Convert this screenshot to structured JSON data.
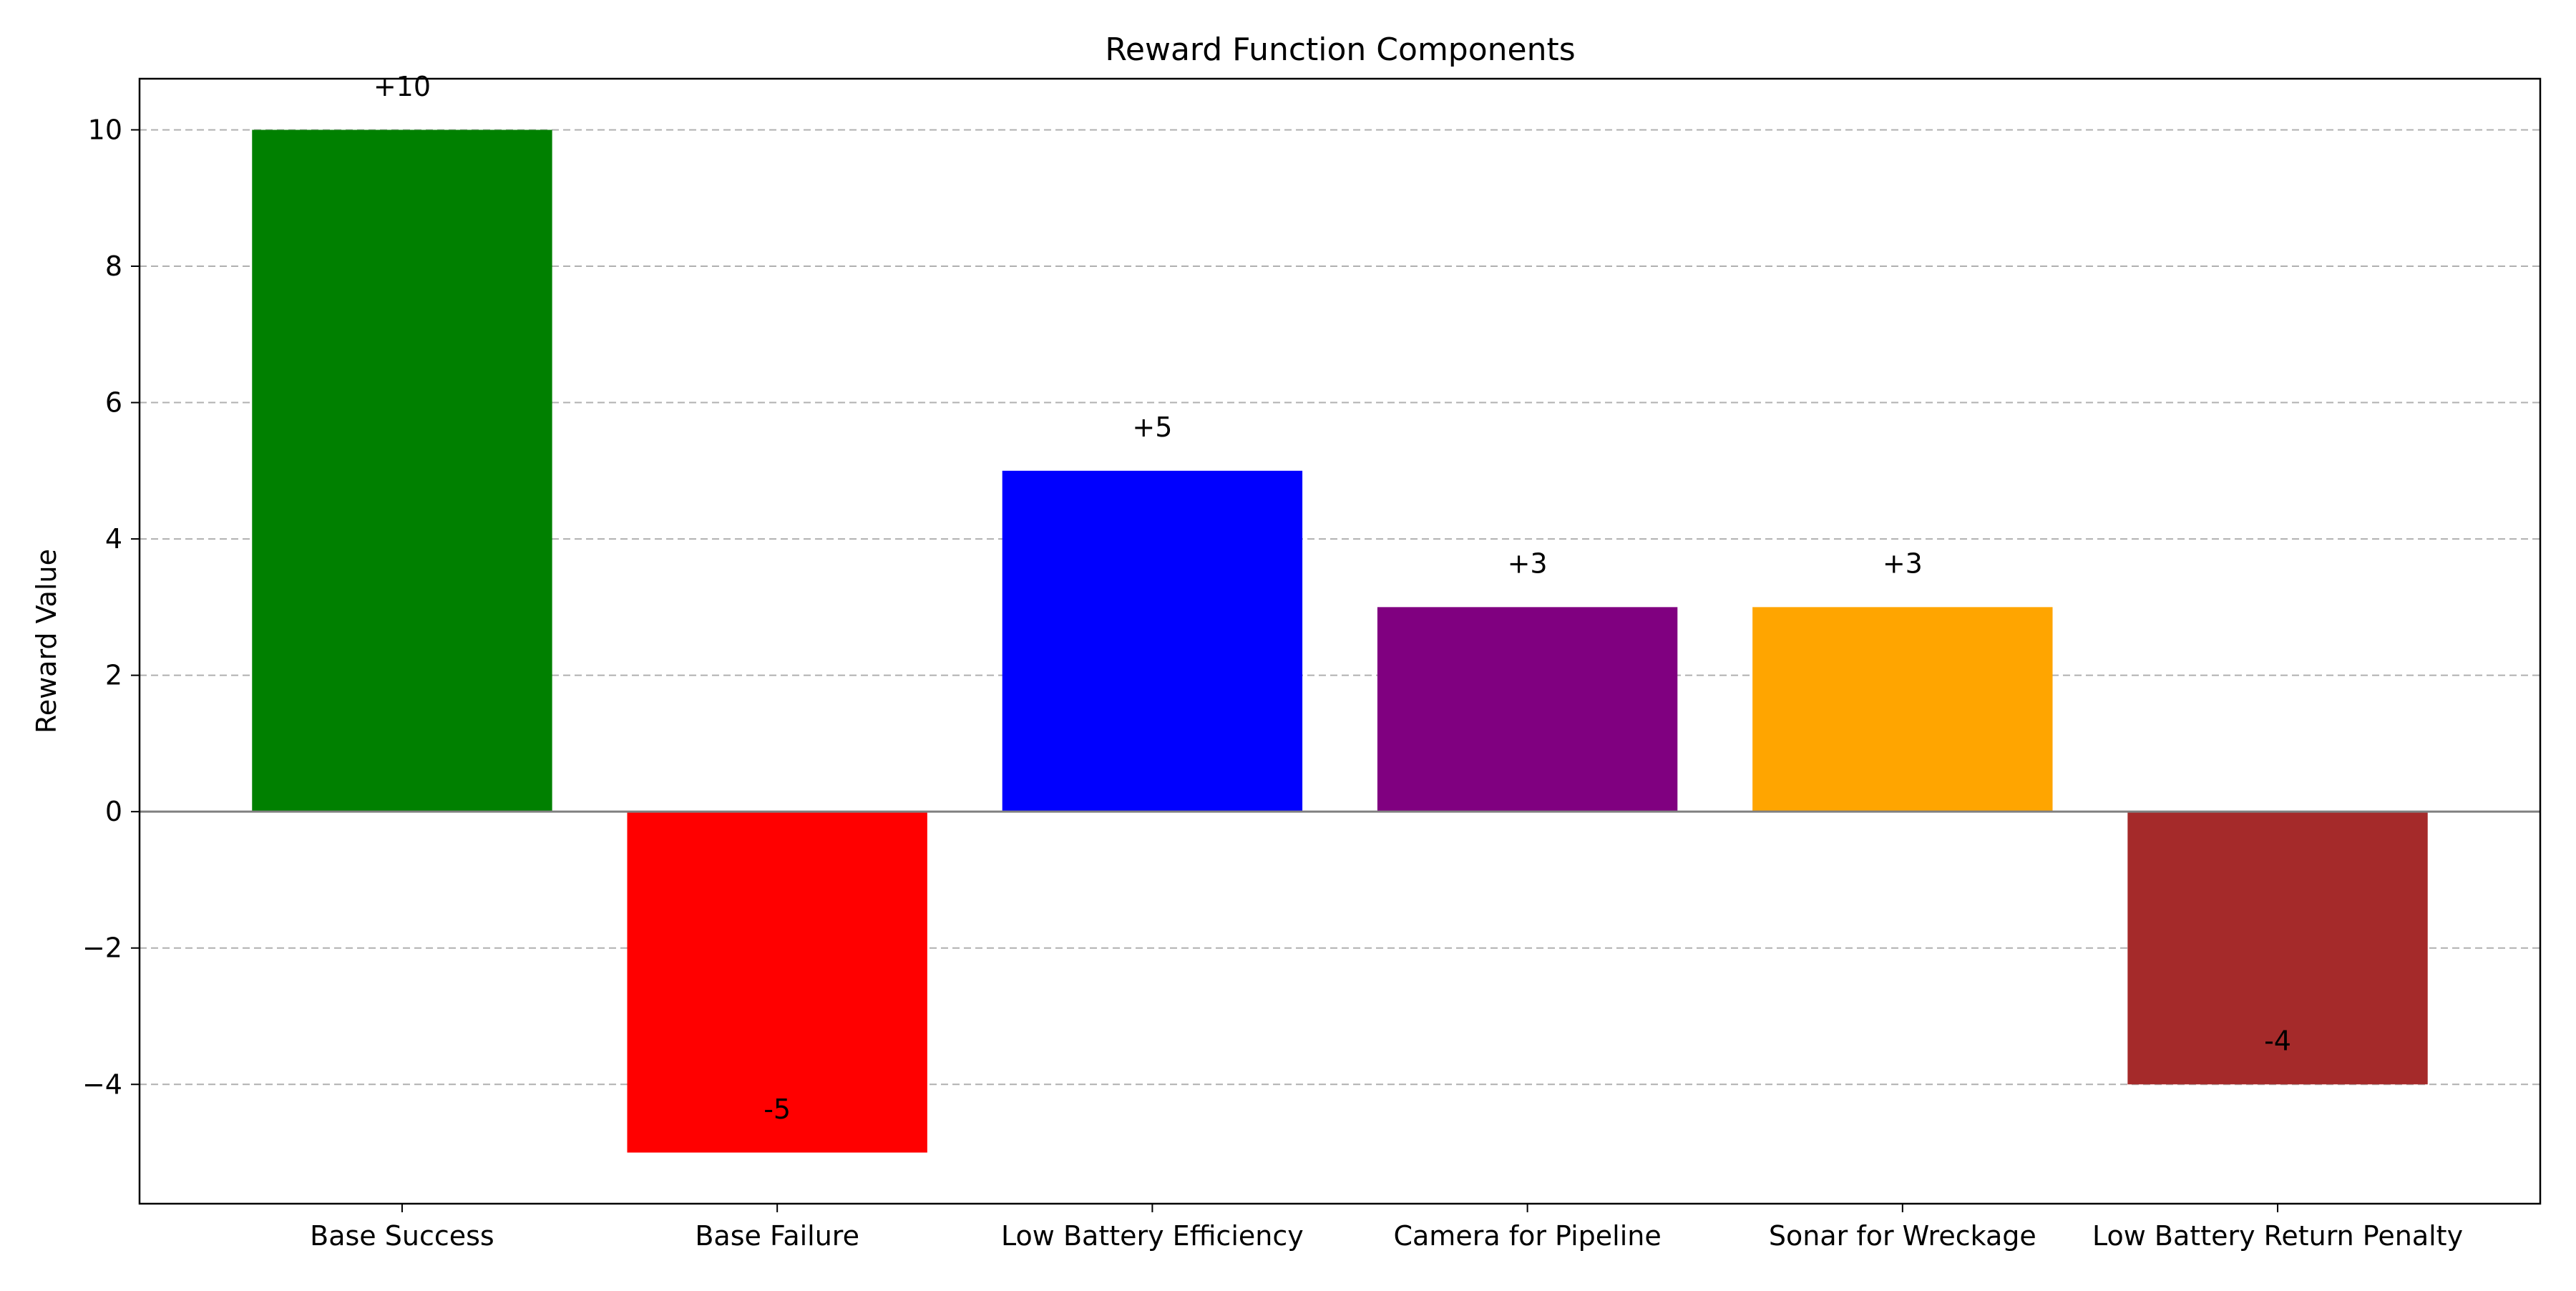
{
  "chart_data": {
    "type": "bar",
    "title": "Reward Function Components",
    "xlabel": "",
    "ylabel": "Reward Value",
    "categories": [
      "Base Success",
      "Base Failure",
      "Low Battery Efficiency",
      "Camera for Pipeline",
      "Sonar for Wreckage",
      "Low Battery Return Penalty"
    ],
    "values": [
      10,
      -5,
      5,
      3,
      3,
      -4
    ],
    "data_labels": [
      "+10",
      "-5",
      "+5",
      "+3",
      "+3",
      "-4"
    ],
    "colors": [
      "#008000",
      "#ff0000",
      "#0000ff",
      "#800080",
      "#ffa500",
      "#a52a2a"
    ],
    "ylim": [
      -5.75,
      10.75
    ],
    "yticks": [
      -4,
      -2,
      0,
      2,
      4,
      6,
      8,
      10
    ],
    "ytick_labels": [
      "−4",
      "−2",
      "0",
      "2",
      "4",
      "6",
      "8",
      "10"
    ],
    "grid": "y-dashed",
    "zero_line": true,
    "legend": "none"
  }
}
